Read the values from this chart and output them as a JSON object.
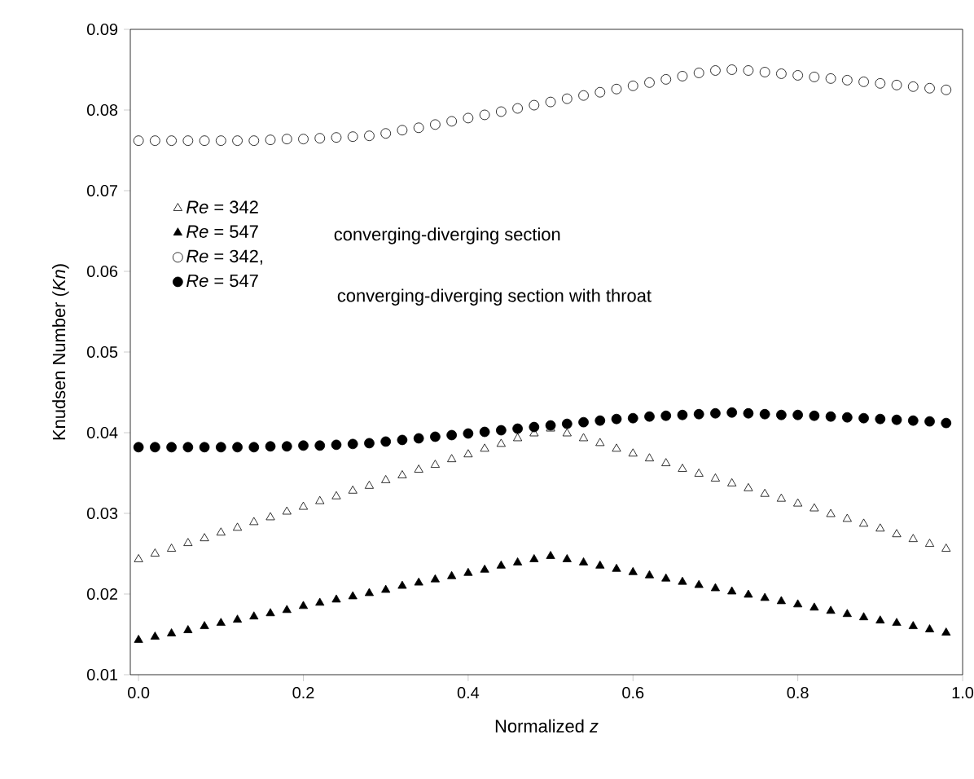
{
  "chart_data": {
    "type": "scatter",
    "xlabel": "Normalized *z*",
    "ylabel": "Knudsen Number (*Kn*)",
    "x": [
      0,
      0.02,
      0.04,
      0.06,
      0.08,
      0.1,
      0.12,
      0.14,
      0.16,
      0.18,
      0.2,
      0.22,
      0.24,
      0.26,
      0.28,
      0.3,
      0.32,
      0.34,
      0.36,
      0.38,
      0.4,
      0.42,
      0.44,
      0.46,
      0.48,
      0.5,
      0.52,
      0.54,
      0.56,
      0.58,
      0.6,
      0.62,
      0.64,
      0.66,
      0.68,
      0.7,
      0.72,
      0.74,
      0.76,
      0.78,
      0.8,
      0.82,
      0.84,
      0.86,
      0.88,
      0.9,
      0.92,
      0.94,
      0.96,
      0.98
    ],
    "series": [
      {
        "name": "*Re* = 342",
        "color": "#ffffff",
        "marker": "triangle",
        "values": [
          0.0243,
          0.025,
          0.0256,
          0.0263,
          0.0269,
          0.0276,
          0.0282,
          0.0289,
          0.0295,
          0.0302,
          0.0308,
          0.0315,
          0.0321,
          0.0328,
          0.0334,
          0.0341,
          0.0347,
          0.0354,
          0.036,
          0.0367,
          0.0373,
          0.038,
          0.0386,
          0.0393,
          0.0399,
          0.0405,
          0.0399,
          0.0393,
          0.0387,
          0.038,
          0.0374,
          0.0368,
          0.0362,
          0.0355,
          0.0349,
          0.0343,
          0.0337,
          0.0331,
          0.0324,
          0.0318,
          0.0312,
          0.0306,
          0.0299,
          0.0293,
          0.0287,
          0.0281,
          0.0274,
          0.0268,
          0.0262,
          0.0256
        ]
      },
      {
        "name": "*Re* = 547",
        "color": "#000000",
        "marker": "triangle",
        "values": [
          0.0143,
          0.0147,
          0.0151,
          0.0155,
          0.016,
          0.0164,
          0.0168,
          0.0172,
          0.0176,
          0.018,
          0.0185,
          0.0189,
          0.0193,
          0.0197,
          0.0201,
          0.0205,
          0.021,
          0.0214,
          0.0218,
          0.0222,
          0.0226,
          0.023,
          0.0235,
          0.0239,
          0.0243,
          0.0247,
          0.0243,
          0.0239,
          0.0235,
          0.0231,
          0.0227,
          0.0223,
          0.0219,
          0.0215,
          0.0211,
          0.0207,
          0.0203,
          0.0199,
          0.0195,
          0.0191,
          0.0187,
          0.0183,
          0.0179,
          0.0175,
          0.0171,
          0.0167,
          0.0164,
          0.016,
          0.0156,
          0.0152
        ]
      },
      {
        "name": "*Re* = 342,",
        "color": "#ffffff",
        "marker": "circle",
        "values": [
          0.0762,
          0.0762,
          0.0762,
          0.0762,
          0.0762,
          0.0762,
          0.0762,
          0.0762,
          0.0763,
          0.0764,
          0.0764,
          0.0765,
          0.0766,
          0.0767,
          0.0768,
          0.0771,
          0.0775,
          0.0778,
          0.0782,
          0.0786,
          0.079,
          0.0794,
          0.0798,
          0.0802,
          0.0806,
          0.081,
          0.0814,
          0.0818,
          0.0822,
          0.0826,
          0.083,
          0.0834,
          0.0838,
          0.0842,
          0.0846,
          0.0849,
          0.085,
          0.0849,
          0.0847,
          0.0845,
          0.0843,
          0.0841,
          0.0839,
          0.0837,
          0.0835,
          0.0833,
          0.0831,
          0.0829,
          0.0827,
          0.0825
        ]
      },
      {
        "name": "*Re* = 547",
        "color": "#000000",
        "marker": "circle",
        "values": [
          0.0382,
          0.0382,
          0.0382,
          0.0382,
          0.0382,
          0.0382,
          0.0382,
          0.0382,
          0.0383,
          0.0383,
          0.0384,
          0.0384,
          0.0385,
          0.0386,
          0.0387,
          0.0389,
          0.0391,
          0.0393,
          0.0395,
          0.0397,
          0.0399,
          0.0401,
          0.0403,
          0.0405,
          0.0407,
          0.0409,
          0.0411,
          0.0413,
          0.0415,
          0.0417,
          0.0418,
          0.042,
          0.0421,
          0.0422,
          0.0423,
          0.0424,
          0.0425,
          0.0424,
          0.0423,
          0.0422,
          0.0422,
          0.0421,
          0.042,
          0.0419,
          0.0418,
          0.0417,
          0.0416,
          0.0415,
          0.0414,
          0.0412
        ]
      }
    ],
    "annotations": [
      "converging-diverging section",
      "converging-diverging section with throat"
    ],
    "xlim": [
      -0.01,
      1.0
    ],
    "ylim": [
      0.01,
      0.09
    ],
    "xticks": [
      {
        "value": 0,
        "label": "0.0"
      },
      0.2,
      0.4,
      0.6,
      0.8,
      {
        "value": 1.0,
        "label": "1.0"
      }
    ],
    "yticks": [
      0.01,
      0.02,
      0.03,
      0.04,
      0.05,
      0.06,
      0.07,
      0.08,
      0.09
    ],
    "legend": "top left",
    "grid": false
  }
}
